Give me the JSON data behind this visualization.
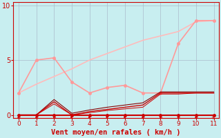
{
  "background_color": "#c8eef0",
  "grid_color": "#aabbcc",
  "xlabel": "Vent moyen/en rafales ( km/h )",
  "xlabel_color": "#cc0000",
  "xlabel_fontsize": 7.5,
  "tick_color": "#cc0000",
  "tick_fontsize": 6.5,
  "ytick_color": "#cc0000",
  "ytick_fontsize": 7,
  "ylim": [
    -0.3,
    10.3
  ],
  "xlim": [
    -0.3,
    11.3
  ],
  "xticks": [
    0,
    1,
    2,
    3,
    4,
    5,
    6,
    7,
    8,
    9,
    10,
    11
  ],
  "yticks": [
    0,
    5,
    10
  ],
  "line_pink_jagged": {
    "x": [
      0,
      1,
      2,
      3,
      4,
      5,
      6,
      7,
      8,
      9,
      10,
      11
    ],
    "y": [
      2.0,
      5.0,
      5.2,
      3.0,
      2.0,
      2.5,
      2.7,
      2.0,
      2.0,
      6.5,
      8.6,
      8.6
    ],
    "color": "#ff9999",
    "lw": 1.2,
    "marker": "o",
    "ms": 2.5
  },
  "line_pink_smooth": {
    "x": [
      0,
      1,
      2,
      3,
      4,
      5,
      6,
      7,
      8,
      9,
      10,
      11
    ],
    "y": [
      2.0,
      2.8,
      3.5,
      4.2,
      5.0,
      5.6,
      6.2,
      6.8,
      7.2,
      7.6,
      8.5,
      8.6
    ],
    "color": "#ffbbbb",
    "lw": 1.2,
    "marker": null
  },
  "line_zero": {
    "x": [
      0,
      1,
      2,
      3,
      4,
      5,
      6,
      7,
      8,
      9,
      10,
      11
    ],
    "y": [
      0.0,
      0.0,
      0.0,
      0.0,
      0.0,
      0.0,
      0.0,
      0.0,
      0.0,
      0.0,
      0.0,
      0.0
    ],
    "color": "#cc0000",
    "lw": 1.5,
    "marker": "o",
    "ms": 2.5
  },
  "line_dark1": {
    "x": [
      0,
      1,
      2,
      3,
      4,
      5,
      6,
      7,
      8,
      9,
      10,
      11
    ],
    "y": [
      0.0,
      0.0,
      1.2,
      0.0,
      0.3,
      0.5,
      0.7,
      0.9,
      2.0,
      2.0,
      2.0,
      2.0
    ],
    "color": "#cc0000",
    "lw": 1.0,
    "marker": null
  },
  "line_dark2": {
    "x": [
      0,
      1,
      2,
      3,
      4,
      5,
      6,
      7,
      8,
      9,
      10,
      11
    ],
    "y": [
      0.0,
      0.0,
      1.4,
      0.15,
      0.45,
      0.7,
      0.9,
      1.1,
      2.1,
      2.1,
      2.1,
      2.1
    ],
    "color": "#880000",
    "lw": 0.8,
    "marker": null
  },
  "line_dark3": {
    "x": [
      0,
      1,
      2,
      3,
      4,
      5,
      6,
      7,
      8,
      9,
      10,
      11
    ],
    "y": [
      0.0,
      0.0,
      1.0,
      0.0,
      0.2,
      0.4,
      0.55,
      0.7,
      1.9,
      1.9,
      2.0,
      2.0
    ],
    "color": "#cc0000",
    "lw": 0.7,
    "marker": null
  },
  "wind_arrows": {
    "x": [
      0,
      1,
      2,
      3,
      4,
      5,
      6,
      7,
      8,
      9,
      10,
      11
    ],
    "angles_deg": [
      225,
      225,
      225,
      270,
      270,
      270,
      270,
      225,
      225,
      225,
      225,
      45
    ],
    "color": "#cc0000",
    "size": 5
  }
}
